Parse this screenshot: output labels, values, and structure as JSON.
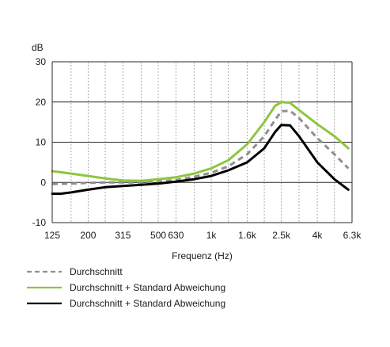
{
  "chart_data": {
    "type": "line",
    "xscale": "log",
    "xlabel": "Frequenz (Hz)",
    "ylabel": "dB",
    "ylim": [
      -10,
      30
    ],
    "yticks": [
      -10,
      0,
      10,
      20,
      30
    ],
    "ytick_labels": [
      "-10",
      "0",
      "10",
      "20",
      "30"
    ],
    "xlim": [
      125,
      6300
    ],
    "xticks": [
      125,
      200,
      315,
      500,
      630,
      1000,
      1600,
      2500,
      4000,
      6300
    ],
    "xtick_labels": [
      "125",
      "200",
      "315",
      "500",
      "630",
      "1k",
      "1.6k",
      "2.5k",
      "4k",
      "6.3k"
    ],
    "minor_grid_x": [
      160,
      250,
      400,
      800,
      1250,
      2000,
      3150,
      5000
    ],
    "grid": true,
    "legend_position": "below",
    "series": [
      {
        "name": "Durchschnitt",
        "color": "#8f8f8f",
        "style": "dashed",
        "x": [
          125,
          160,
          200,
          250,
          315,
          400,
          500,
          630,
          800,
          1000,
          1250,
          1600,
          2000,
          2300,
          2500,
          2800,
          3150,
          4000,
          5000,
          6000
        ],
        "y": [
          -0.4,
          -0.3,
          -0.1,
          0,
          0,
          0,
          0.2,
          0.6,
          1.4,
          2.4,
          4.0,
          7.0,
          11.5,
          15.5,
          17.7,
          17.8,
          16.0,
          11.0,
          7.0,
          3.5
        ]
      },
      {
        "name": "Durchschnitt + Standard Abweichung",
        "color": "#8dc63f",
        "style": "solid",
        "x": [
          125,
          160,
          200,
          250,
          315,
          400,
          500,
          630,
          800,
          1000,
          1250,
          1600,
          2000,
          2300,
          2500,
          2800,
          3150,
          4000,
          5000,
          6000
        ],
        "y": [
          2.8,
          2.2,
          1.6,
          1.0,
          0.5,
          0.4,
          0.8,
          1.3,
          2.2,
          3.5,
          5.5,
          9.5,
          15.0,
          19.0,
          20.0,
          19.8,
          18.0,
          14.5,
          11.5,
          8.5
        ]
      },
      {
        "name": "Durchschnitt + Standard Abweichung",
        "color": "#000000",
        "style": "solid",
        "x": [
          125,
          140,
          160,
          200,
          250,
          315,
          400,
          500,
          630,
          800,
          1000,
          1250,
          1600,
          2000,
          2300,
          2500,
          2800,
          3150,
          4000,
          5000,
          6000
        ],
        "y": [
          -2.8,
          -2.8,
          -2.5,
          -1.8,
          -1.2,
          -0.9,
          -0.6,
          -0.3,
          0.2,
          0.8,
          1.6,
          3.0,
          5.0,
          8.5,
          12.5,
          14.3,
          14.2,
          11.5,
          5.0,
          0.8,
          -1.8
        ]
      }
    ]
  }
}
